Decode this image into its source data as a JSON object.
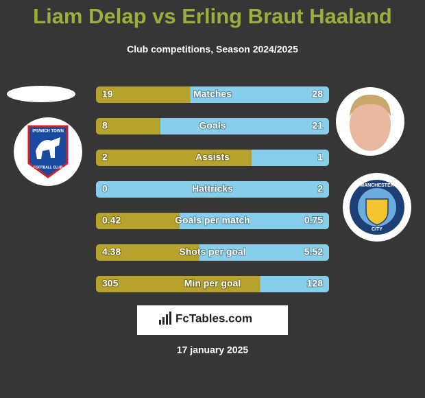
{
  "header": {
    "title": "Liam Delap vs Erling Braut Haaland",
    "subtitle": "Club competitions, Season 2024/2025"
  },
  "colors": {
    "left": "#b6a22c",
    "right": "#87ceeb"
  },
  "rows": [
    {
      "label": "Matches",
      "left": 19,
      "right": 28
    },
    {
      "label": "Goals",
      "left": 8,
      "right": 21
    },
    {
      "label": "Assists",
      "left": 2,
      "right": 1
    },
    {
      "label": "Hattricks",
      "left": 0,
      "right": 2
    },
    {
      "label": "Goals per match",
      "left": 0.42,
      "right": 0.75
    },
    {
      "label": "Shots per goal",
      "left": 4.38,
      "right": 5.52
    },
    {
      "label": "Min per goal",
      "left": 305,
      "right": 128
    }
  ],
  "logos": {
    "left_club": [
      "IPSWICH TOWN",
      "FOOTBALL CLUB"
    ],
    "right_club": [
      "MANCHESTER",
      "CITY"
    ]
  },
  "brand": "FcTables.com",
  "date": "17 january 2025"
}
